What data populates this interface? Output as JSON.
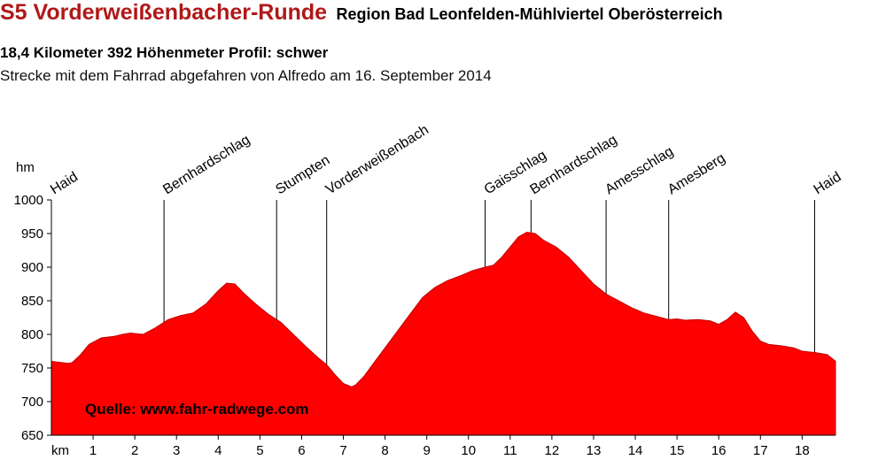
{
  "header": {
    "title": "S5 Vorderweißenbacher-Runde",
    "region": "Region Bad Leonfelden-Mühlviertel Oberösterreich",
    "stats": "18,4 Kilometer  392 Höhenmeter  Profil: schwer",
    "ride": "Strecke mit dem Fahrrad abgefahren von Alfredo am 16. September 2014"
  },
  "colors": {
    "fill": "#ff0000",
    "title": "#b01818",
    "axis": "#000000"
  },
  "chart_data": {
    "type": "area",
    "title": "S5 Vorderweißenbacher-Runde",
    "xlabel": "km",
    "ylabel": "hm",
    "xlim": [
      0,
      18.8
    ],
    "ylim": [
      650,
      1000
    ],
    "x_ticks": [
      1,
      2,
      3,
      4,
      5,
      6,
      7,
      8,
      9,
      10,
      11,
      12,
      13,
      14,
      15,
      16,
      17,
      18
    ],
    "y_ticks": [
      650,
      700,
      750,
      800,
      850,
      900,
      950,
      1000
    ],
    "grid": false,
    "source_annotation": "Quelle: www.fahr-radwege.com",
    "series": [
      {
        "x": [
          0,
          0.4,
          0.5,
          0.7,
          0.9,
          1.2,
          1.5,
          1.7,
          1.9,
          2.2,
          2.5,
          2.8,
          3.1,
          3.4,
          3.7,
          4.0,
          4.2,
          4.4,
          4.6,
          4.9,
          5.2,
          5.5,
          5.8,
          6.1,
          6.4,
          6.6,
          6.8,
          7.0,
          7.2,
          7.3,
          7.5,
          7.7,
          8.0,
          8.3,
          8.6,
          8.9,
          9.2,
          9.5,
          9.8,
          10.1,
          10.4,
          10.6,
          10.8,
          11.0,
          11.2,
          11.4,
          11.6,
          11.8,
          12.1,
          12.4,
          12.7,
          13.0,
          13.3,
          13.6,
          13.9,
          14.2,
          14.5,
          14.8,
          15.0,
          15.2,
          15.5,
          15.8,
          16.0,
          16.2,
          16.4,
          16.6,
          16.8,
          17.0,
          17.2,
          17.5,
          17.8,
          18.0,
          18.3,
          18.6,
          18.8
        ],
        "y": [
          760,
          757,
          758,
          770,
          785,
          795,
          797,
          800,
          802,
          800,
          810,
          822,
          828,
          832,
          845,
          865,
          876,
          875,
          862,
          845,
          830,
          818,
          800,
          782,
          765,
          755,
          740,
          727,
          722,
          725,
          738,
          755,
          780,
          805,
          830,
          855,
          870,
          880,
          887,
          895,
          900,
          903,
          915,
          930,
          945,
          952,
          950,
          940,
          930,
          915,
          895,
          875,
          860,
          850,
          840,
          832,
          827,
          822,
          823,
          821,
          822,
          820,
          815,
          822,
          833,
          825,
          805,
          790,
          785,
          783,
          780,
          775,
          773,
          770,
          760
        ]
      }
    ],
    "markers": [
      {
        "label": "Haid",
        "km": 0
      },
      {
        "label": "Bernhardschlag",
        "km": 2.7
      },
      {
        "label": "Stumpten",
        "km": 5.4
      },
      {
        "label": "Vorderweißenbach",
        "km": 6.6
      },
      {
        "label": "Gaisschlag",
        "km": 10.4
      },
      {
        "label": "Bernhardschlag",
        "km": 11.5
      },
      {
        "label": "Amesschlag",
        "km": 13.3
      },
      {
        "label": "Amesberg",
        "km": 14.8
      },
      {
        "label": "Haid",
        "km": 18.3
      }
    ]
  }
}
